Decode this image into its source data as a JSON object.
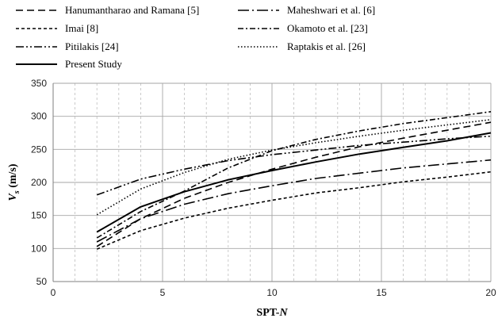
{
  "chart_data": {
    "type": "line",
    "title": "",
    "xlabel": "SPT-N",
    "xlabel_main": "SPT-",
    "xlabel_italic": "N",
    "ylabel": "Vs (m/s)",
    "ylabel_symbol": "V",
    "ylabel_subscript": "s",
    "ylabel_unit": " (m/s)",
    "xlim": [
      0,
      20
    ],
    "ylim": [
      50,
      350
    ],
    "x_ticks": [
      0,
      5,
      10,
      15,
      20
    ],
    "y_ticks": [
      50,
      100,
      150,
      200,
      250,
      300,
      350
    ],
    "grid": "major solid gray, minor vertical dashed gray",
    "legend_position": "top, above plot",
    "series": [
      {
        "name": "Hanumantharao and Ramana [5]",
        "style": "dashed",
        "x": [
          2,
          4,
          6,
          8,
          10,
          12,
          14,
          16,
          18,
          20
        ],
        "y": [
          103,
          145,
          176,
          200,
          220,
          238,
          254,
          267,
          279,
          291
        ]
      },
      {
        "name": "Maheshwari et al. [6]",
        "style": "long-dash-dot",
        "x": [
          2,
          4,
          6,
          8,
          10,
          12,
          14,
          16,
          18,
          20
        ],
        "y": [
          110,
          145,
          167,
          183,
          195,
          206,
          214,
          222,
          228,
          234
        ]
      },
      {
        "name": "Imai [8]",
        "style": "short-dash",
        "x": [
          2,
          4,
          6,
          8,
          10,
          12,
          14,
          16,
          18,
          20
        ],
        "y": [
          99,
          127,
          146,
          161,
          173,
          184,
          192,
          201,
          208,
          216
        ]
      },
      {
        "name": "Okamoto et al. [23]",
        "style": "dash-dot",
        "x": [
          2,
          4,
          6,
          8,
          10,
          12,
          14,
          16,
          18,
          20
        ],
        "y": [
          116,
          156,
          187,
          222,
          248,
          265,
          278,
          289,
          298,
          307
        ]
      },
      {
        "name": "Pitilakis [24]",
        "style": "dash-dot-dot",
        "x": [
          2,
          4,
          6,
          8,
          10,
          12,
          14,
          16,
          18,
          20
        ],
        "y": [
          181,
          205,
          220,
          233,
          242,
          249,
          256,
          261,
          266,
          270
        ]
      },
      {
        "name": "Raptakis et al. [26]",
        "style": "dotted",
        "x": [
          2,
          4,
          6,
          8,
          10,
          12,
          14,
          16,
          18,
          20
        ],
        "y": [
          151,
          190,
          215,
          235,
          249,
          260,
          270,
          279,
          287,
          295
        ]
      },
      {
        "name": "Present Study",
        "style": "solid",
        "x": [
          2,
          4,
          6,
          8,
          10,
          12,
          14,
          16,
          18,
          20
        ],
        "y": [
          125,
          163,
          186,
          204,
          218,
          231,
          243,
          253,
          263,
          275
        ]
      }
    ]
  }
}
